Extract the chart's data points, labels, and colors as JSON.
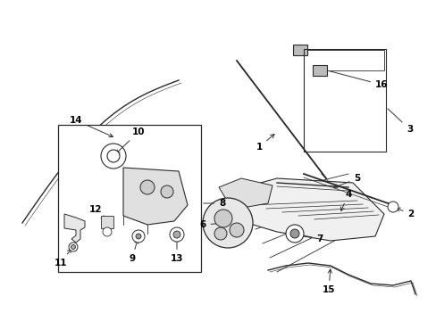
{
  "bg_color": "#ffffff",
  "lc": "#2a2a2a",
  "fig_width": 4.89,
  "fig_height": 3.6,
  "dpi": 100,
  "label_fs": 7.5,
  "arrow_color": "#333333"
}
